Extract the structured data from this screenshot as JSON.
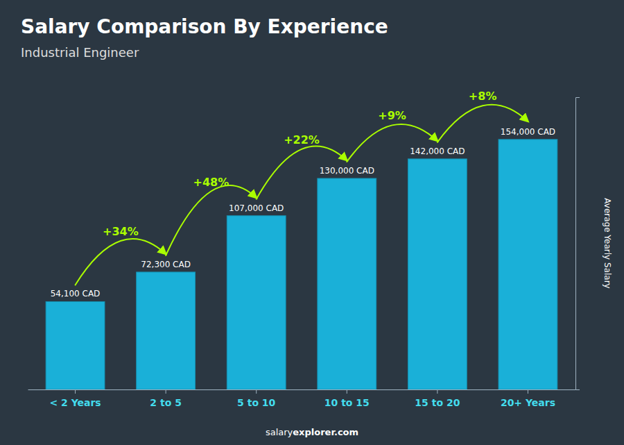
{
  "chart_data": {
    "type": "bar",
    "title": "Salary Comparison By Experience",
    "subtitle": "Industrial Engineer",
    "ylabel": "Average Yearly Salary",
    "footer": [
      "salary",
      "explorer.com"
    ],
    "categories": [
      "< 2 Years",
      "2 to 5",
      "5 to 10",
      "10 to 15",
      "15 to 20",
      "20+ Years"
    ],
    "values": [
      54100,
      72300,
      107000,
      130000,
      142000,
      154000
    ],
    "value_labels": [
      "54,100 CAD",
      "72,300 CAD",
      "107,000 CAD",
      "130,000 CAD",
      "142,000 CAD",
      "154,000 CAD"
    ],
    "data_labels": true,
    "annotations": [
      "+34%",
      "+48%",
      "+22%",
      "+9%",
      "+8%"
    ],
    "color": "#1ab0d8",
    "ylim": [
      0,
      180000
    ],
    "tick_labels": "x",
    "grid": false
  }
}
